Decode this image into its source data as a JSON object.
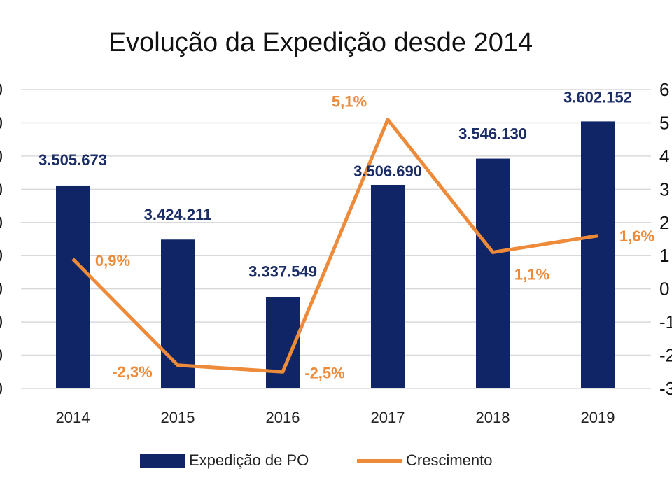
{
  "chart_data": {
    "type": "bar+line",
    "title": "Evolução da Expedição desde 2014",
    "categories": [
      "2014",
      "2015",
      "2016",
      "2017",
      "2018",
      "2019"
    ],
    "series": [
      {
        "name": "Expedição de PO",
        "type": "bar",
        "axis": "left",
        "color": "#0f2565",
        "values": [
          3505673,
          3424211,
          3337549,
          3506690,
          3546130,
          3602152
        ],
        "labels": [
          "3.505.673",
          "3.424.211",
          "3.337.549",
          "3.506.690",
          "3.546.130",
          "3.602.152"
        ]
      },
      {
        "name": "Crescimento",
        "type": "line",
        "axis": "right",
        "color": "#ed8b3a",
        "values": [
          0.9,
          -2.3,
          -2.5,
          5.1,
          1.1,
          1.6
        ],
        "labels": [
          "0,9%",
          "-2,3%",
          "-2,5%",
          "5,1%",
          "1,1%",
          "1,6%"
        ]
      }
    ],
    "left_axis": {
      "ylim": [
        3200000,
        3650000
      ],
      "step": 50000
    },
    "right_axis": {
      "ylim": [
        -3,
        6
      ],
      "step": 1,
      "ticks": [
        "6",
        "5",
        "4",
        "3",
        "2",
        "1",
        "0",
        "-1",
        "-2",
        "-3"
      ]
    },
    "grid": true,
    "legend": "bottom"
  }
}
